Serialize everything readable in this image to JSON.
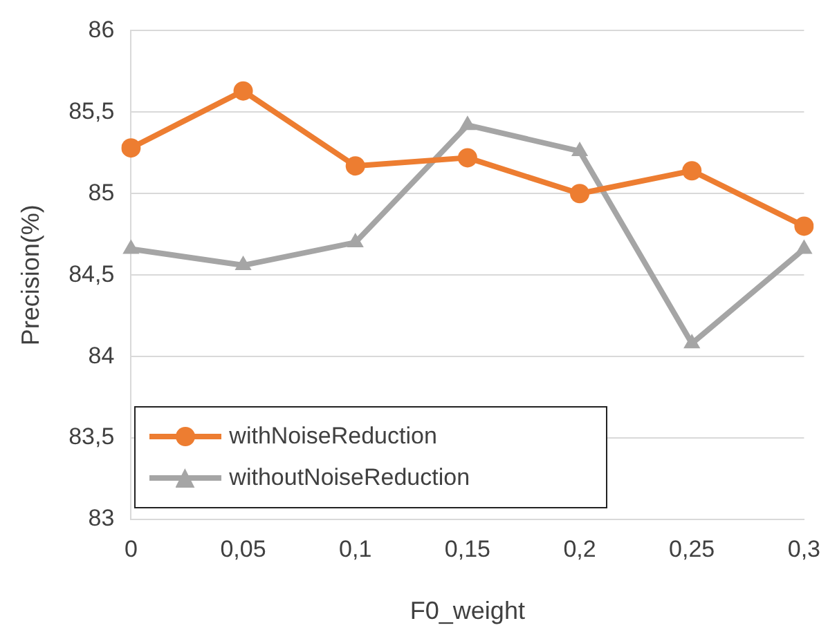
{
  "chart_data": {
    "type": "line",
    "xlabel": "F0_weight",
    "ylabel": "Precision(%)",
    "categories": [
      "0",
      "0,05",
      "0,1",
      "0,15",
      "0,2",
      "0,25",
      "0,3"
    ],
    "series": [
      {
        "name": "withNoiseReduction",
        "color": "#ed7d31",
        "marker": "circle",
        "values": [
          85.28,
          85.63,
          85.17,
          85.22,
          85.0,
          85.14,
          84.8
        ]
      },
      {
        "name": "withoutNoiseReduction",
        "color": "#a5a5a5",
        "marker": "triangle",
        "values": [
          84.66,
          84.56,
          84.7,
          85.42,
          85.26,
          84.08,
          84.66
        ]
      }
    ],
    "ylim": [
      83,
      86
    ],
    "yticks": [
      83,
      {
        "value": 83.5,
        "label": "83,5"
      },
      84,
      {
        "value": 84.5,
        "label": "84,5"
      },
      85,
      {
        "value": 85.5,
        "label": "85,5"
      },
      86
    ],
    "grid": "y",
    "legend": "bottom left",
    "line_style": "solid"
  }
}
